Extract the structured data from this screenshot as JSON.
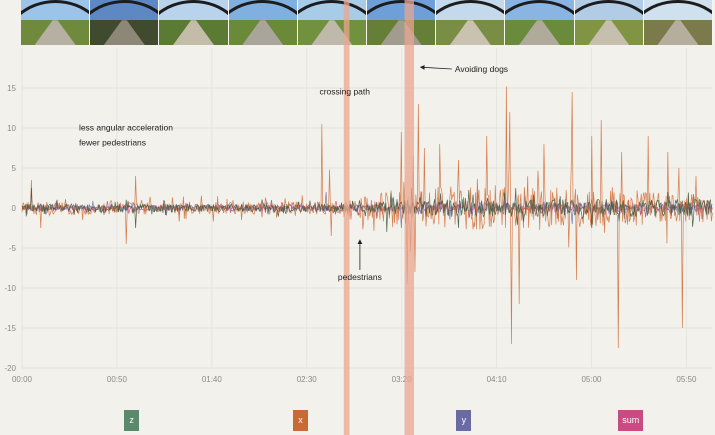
{
  "filmstrip": {
    "frames": [
      {
        "icon": "path-photo",
        "sky": "#9cc3e8",
        "ground": "#6f8a3d",
        "road": "#b5b0a2"
      },
      {
        "icon": "path-photo",
        "sky": "#5e88c4",
        "ground": "#3f4a2e",
        "road": "#8d8778"
      },
      {
        "icon": "path-photo",
        "sky": "#b9d3ec",
        "ground": "#5b7a34",
        "road": "#c3bca9"
      },
      {
        "icon": "path-photo",
        "sky": "#7fb0e0",
        "ground": "#6a8a3a",
        "road": "#aaa59a"
      },
      {
        "icon": "path-photo",
        "sky": "#a8cbe8",
        "ground": "#72913e",
        "road": "#bfb9ab"
      },
      {
        "icon": "path-photo",
        "sky": "#6e9fd8",
        "ground": "#657f38",
        "road": "#a29c8e"
      },
      {
        "icon": "path-photo",
        "sky": "#c4d9ec",
        "ground": "#7a8d45",
        "road": "#c9c2b0"
      },
      {
        "icon": "path-photo",
        "sky": "#8ab5e2",
        "ground": "#6a8a3c",
        "road": "#b0aa9b"
      },
      {
        "icon": "path-photo",
        "sky": "#b2cce6",
        "ground": "#819444",
        "road": "#c6bfae"
      },
      {
        "icon": "path-photo",
        "sky": "#cfe0ef",
        "ground": "#7b7a4a",
        "road": "#b6ae9c"
      }
    ]
  },
  "chart_data": {
    "type": "line",
    "title": "",
    "xlabel": "",
    "ylabel": "",
    "x_unit": "mm:ss",
    "xlim": [
      0,
      364
    ],
    "ylim": [
      -20,
      20
    ],
    "yticks": [
      -20,
      -15,
      -10,
      -5,
      0,
      5,
      10,
      15
    ],
    "ytick_labels": [
      "-20",
      "-15",
      "-10",
      "-5",
      "0",
      "5",
      "10",
      "15"
    ],
    "xticks": [
      0,
      50,
      100,
      150,
      200,
      250,
      300,
      350
    ],
    "xtick_labels": [
      "00:00",
      "00:50",
      "01:40",
      "02:30",
      "03:20",
      "04:10",
      "05:00",
      "05:50"
    ],
    "grid": true,
    "legend_position": "bottom",
    "series": [
      {
        "name": "z",
        "color": "#3c5a3f",
        "noise": [
          [
            0,
            0.5
          ],
          [
            180,
            0.5
          ],
          [
            200,
            1.1
          ],
          [
            364,
            1.1
          ]
        ],
        "spikes": [
          [
            5,
            2.5
          ],
          [
            60,
            -2.5
          ],
          [
            192,
            -3.0
          ],
          [
            205,
            2.5
          ],
          [
            230,
            -2.5
          ],
          [
            260,
            2.5
          ],
          [
            300,
            -2.5
          ],
          [
            340,
            2.0
          ]
        ]
      },
      {
        "name": "x",
        "color": "#d2703c",
        "noise": [
          [
            0,
            0.8
          ],
          [
            170,
            0.8
          ],
          [
            195,
            2.4
          ],
          [
            250,
            3.0
          ],
          [
            364,
            1.8
          ]
        ],
        "spikes": [
          [
            5,
            3.5
          ],
          [
            10,
            -2.5
          ],
          [
            55,
            -4.5
          ],
          [
            60,
            4.0
          ],
          [
            158,
            10.5
          ],
          [
            162,
            4.8
          ],
          [
            163,
            -3.5
          ],
          [
            200,
            9.5
          ],
          [
            203,
            -9.5
          ],
          [
            206,
            6.5
          ],
          [
            207,
            -8.0
          ],
          [
            209,
            13.0
          ],
          [
            212,
            7.5
          ],
          [
            220,
            8.0
          ],
          [
            230,
            6.0
          ],
          [
            245,
            9.0
          ],
          [
            255,
            15.2
          ],
          [
            257,
            12.0
          ],
          [
            258,
            -17.0
          ],
          [
            262,
            -12.0
          ],
          [
            275,
            8.0
          ],
          [
            290,
            14.5
          ],
          [
            292,
            -9.0
          ],
          [
            300,
            9.0
          ],
          [
            305,
            11.0
          ],
          [
            314,
            -17.5
          ],
          [
            316,
            7.0
          ],
          [
            330,
            9.0
          ],
          [
            340,
            7.0
          ],
          [
            346,
            5.0
          ],
          [
            348,
            -15.0
          ],
          [
            355,
            4.0
          ]
        ]
      },
      {
        "name": "y",
        "color": "#6f6aa6",
        "noise": [
          [
            0,
            0.4
          ],
          [
            195,
            0.5
          ],
          [
            210,
            0.8
          ],
          [
            364,
            0.8
          ]
        ],
        "spikes": [
          [
            160,
            2.0
          ],
          [
            200,
            -2.5
          ],
          [
            240,
            2.0
          ],
          [
            290,
            -2.0
          ]
        ]
      },
      {
        "name": "sum",
        "color": "#c94b82",
        "noise": [
          [
            0,
            0.3
          ],
          [
            364,
            0.5
          ]
        ],
        "spikes": [
          [
            210,
            2.0
          ],
          [
            300,
            -2.0
          ]
        ]
      }
    ],
    "highlight_bands": [
      {
        "x_start": 169.5,
        "x_end": 172.5,
        "color": "#e9a590"
      },
      {
        "x_start": 201.5,
        "x_end": 206.5,
        "color": "#e9a590"
      }
    ],
    "annotations": [
      {
        "text": "less angular acceleration",
        "x": 30,
        "y": 9.7,
        "align": "start"
      },
      {
        "text": "fewer pedestrians",
        "x": 30,
        "y": 7.8,
        "align": "start"
      },
      {
        "text": "crossing path",
        "x": 170,
        "y": 14.2,
        "align": "middle"
      },
      {
        "text": "Avoiding dogs",
        "x": 228,
        "y": 17.0,
        "align": "start",
        "arrow_to": [
          210,
          17.6
        ]
      },
      {
        "text": "pedestrians",
        "x": 178,
        "y": -9.0,
        "align": "middle",
        "arrow_to": [
          178,
          -4.0
        ]
      }
    ]
  },
  "legend": [
    {
      "label": "z",
      "color": "#5a8a6b",
      "x_at": 58
    },
    {
      "label": "x",
      "color": "#c96a34",
      "x_at": 147
    },
    {
      "label": "y",
      "color": "#6a6ba5",
      "x_at": 233
    },
    {
      "label": "sum",
      "color": "#c94b82",
      "x_at": 322
    }
  ]
}
